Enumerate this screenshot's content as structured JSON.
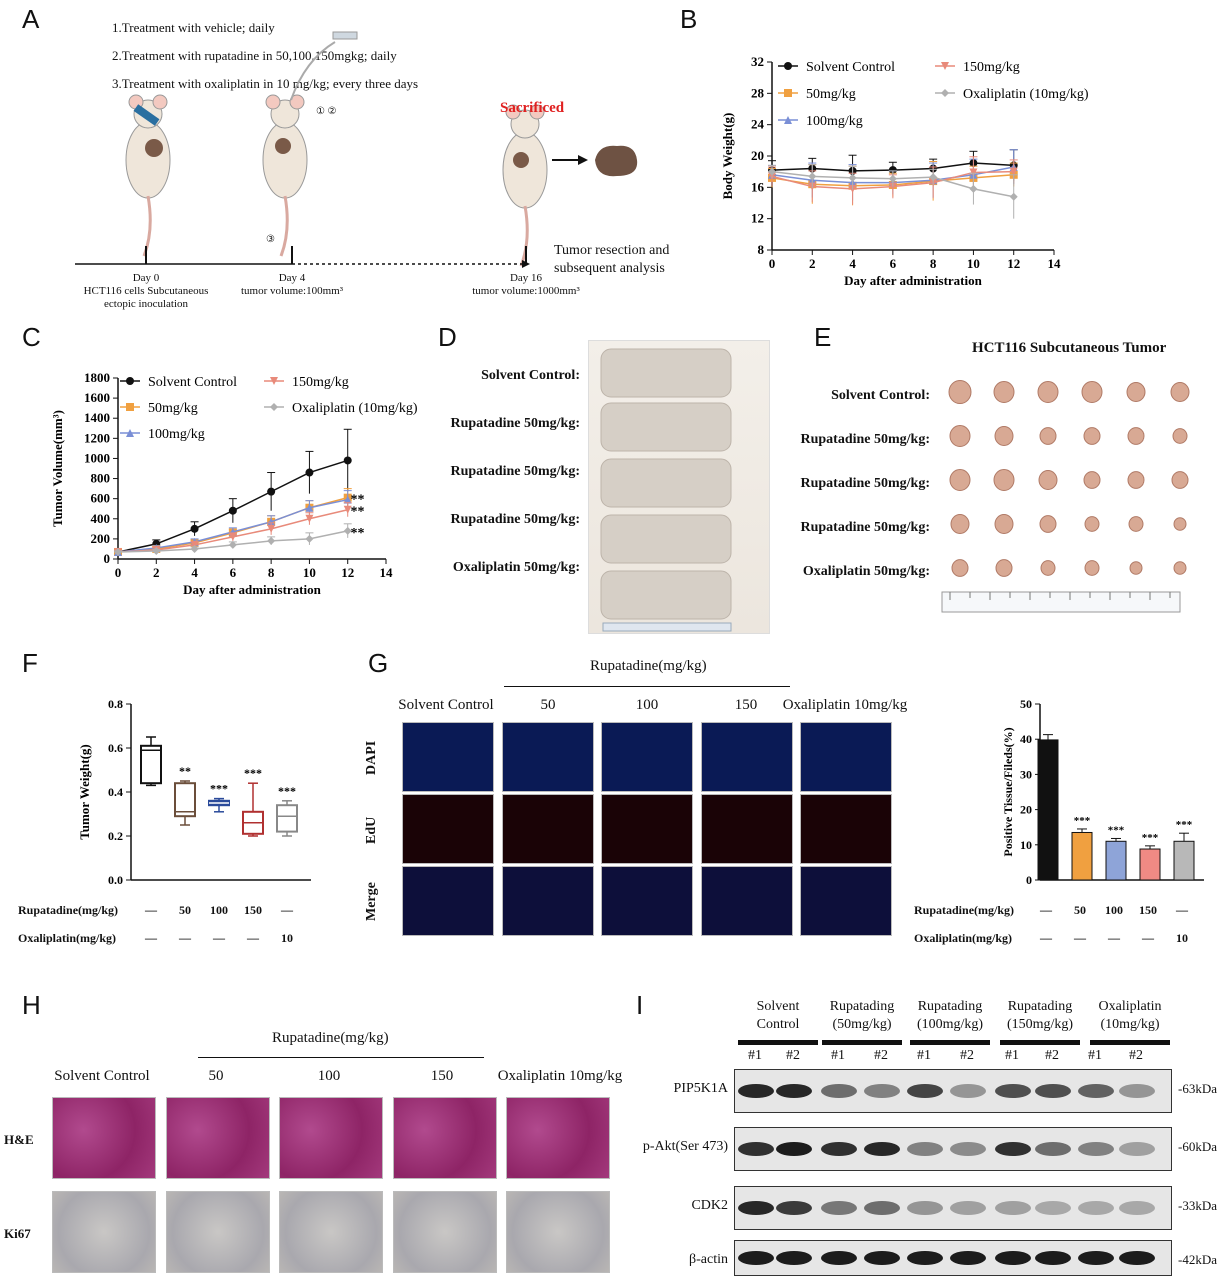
{
  "panels": {
    "A": {
      "label": "A",
      "steps": [
        "1.Treatment with vehicle; daily",
        "2.Treatment with rupatadine in 50,100,150mgkg; daily",
        "3.Treatment with oxaliplatin in 10 mg/kg; every three days"
      ],
      "sacrificed": "Sacrificed",
      "resection": [
        "Tumor resection and",
        "subsequent analysis"
      ],
      "timeline": [
        {
          "lines": [
            "Day 0",
            "HCT116 cells Subcutaneous",
            "ectopic inoculation"
          ]
        },
        {
          "lines": [
            "Day 4",
            "tumor volume:100mm³"
          ]
        },
        {
          "lines": [
            "Day 16",
            "tumor volume:1000mm³"
          ]
        }
      ],
      "markers": [
        "① ②",
        "③"
      ]
    },
    "B": {
      "label": "B"
    },
    "C": {
      "label": "C"
    },
    "D": {
      "label": "D",
      "rows": [
        "Solvent Control:",
        "Rupatadine 50mg/kg:",
        "Rupatadine 50mg/kg:",
        "Rupatadine 50mg/kg:",
        "Oxaliplatin 50mg/kg:"
      ]
    },
    "E": {
      "label": "E",
      "title": "HCT116 Subcutaneous Tumor",
      "rows": [
        "Solvent Control:",
        "Rupatadine 50mg/kg:",
        "Rupatadine 50mg/kg:",
        "Rupatadine 50mg/kg:",
        "Oxaliplatin 50mg/kg:"
      ]
    },
    "F": {
      "label": "F",
      "rupa_label": "Rupatadine(mg/kg)",
      "oxa_label": "Oxaliplatin(mg/kg)",
      "rupa": [
        "—",
        "50",
        "100",
        "150",
        "—"
      ],
      "oxa": [
        "—",
        "—",
        "—",
        "—",
        "10"
      ]
    },
    "G": {
      "label": "G",
      "group_title": "Rupatadine(mg/kg)",
      "cols": [
        "Solvent Control",
        "50",
        "100",
        "150",
        "Oxaliplatin 10mg/kg"
      ],
      "rows": [
        "DAPI",
        "EdU",
        "Merge"
      ],
      "rupa_label": "Rupatadine(mg/kg)",
      "oxa_label": "Oxaliplatin(mg/kg)",
      "rupa": [
        "—",
        "50",
        "100",
        "150",
        "—"
      ],
      "oxa": [
        "—",
        "—",
        "—",
        "—",
        "10"
      ]
    },
    "H": {
      "label": "H",
      "group_title": "Rupatadine(mg/kg)",
      "cols": [
        "Solvent Control",
        "50",
        "100",
        "150",
        "Oxaliplatin 10mg/kg"
      ],
      "rows": [
        "H&E",
        "Ki67"
      ]
    },
    "I": {
      "label": "I",
      "groups": [
        [
          "Solvent",
          "Control"
        ],
        [
          "Rupatading",
          "(50mg/kg)"
        ],
        [
          "Rupatading",
          "(100mg/kg)"
        ],
        [
          "Rupatading",
          "(150mg/kg)"
        ],
        [
          "Oxaliplatin",
          "(10mg/kg)"
        ]
      ],
      "lanes": [
        "#1",
        "#2",
        "#1",
        "#2",
        "#1",
        "#2",
        "#1",
        "#2",
        "#1",
        "#2"
      ],
      "blots": [
        {
          "name": "PIP5K1A",
          "size": "-63kDa",
          "intensity": [
            0.95,
            0.95,
            0.6,
            0.5,
            0.8,
            0.4,
            0.75,
            0.75,
            0.65,
            0.4
          ]
        },
        {
          "name": "p-Akt(Ser 473)",
          "size": "-60kDa",
          "intensity": [
            0.9,
            1.0,
            0.9,
            0.95,
            0.5,
            0.45,
            0.9,
            0.6,
            0.5,
            0.35
          ]
        },
        {
          "name": "CDK2",
          "size": "-33kDa",
          "intensity": [
            0.95,
            0.85,
            0.55,
            0.6,
            0.4,
            0.35,
            0.35,
            0.3,
            0.3,
            0.3
          ]
        },
        {
          "name": "β-actin",
          "size": "-42kDa",
          "intensity": [
            1,
            1,
            1,
            1,
            1,
            1,
            1,
            1,
            1,
            1
          ]
        }
      ]
    }
  },
  "chart_data": [
    {
      "id": "B",
      "type": "line",
      "xlabel": "Day after administration",
      "ylabel": "Body Weight(g)",
      "xlim": [
        0,
        14
      ],
      "ylim": [
        8,
        32
      ],
      "xticks": [
        0,
        2,
        4,
        6,
        8,
        10,
        12,
        14
      ],
      "yticks": [
        8,
        12,
        16,
        20,
        24,
        28,
        32
      ],
      "x": [
        0,
        2,
        4,
        6,
        8,
        10,
        12
      ],
      "series": [
        {
          "name": "Solvent Control",
          "color": "#111111",
          "marker": "circle",
          "values": [
            18.2,
            18.4,
            18.1,
            18.2,
            18.4,
            19.1,
            18.8
          ],
          "err": [
            1.2,
            1.3,
            2.0,
            1.0,
            1.2,
            1.5,
            2.0
          ]
        },
        {
          "name": "50mg/kg",
          "color": "#f0a040",
          "marker": "square",
          "values": [
            17.2,
            16.4,
            16.2,
            16.3,
            16.8,
            17.2,
            17.6
          ],
          "err": [
            1.2,
            2.5,
            2.5,
            1.5,
            2.5,
            1.5,
            1.5
          ]
        },
        {
          "name": "100mg/kg",
          "color": "#7a8fd6",
          "marker": "triangle-up",
          "values": [
            17.6,
            16.9,
            16.6,
            16.6,
            16.9,
            17.6,
            18.6
          ],
          "err": [
            1.2,
            2.2,
            2.3,
            1.5,
            2.2,
            2.0,
            2.2
          ]
        },
        {
          "name": "150mg/kg",
          "color": "#e88a7a",
          "marker": "triangle-down",
          "values": [
            17.4,
            16.1,
            15.8,
            16.1,
            16.6,
            17.9,
            18.0
          ],
          "err": [
            1.2,
            2.0,
            2.0,
            1.5,
            2.0,
            2.0,
            1.5
          ]
        },
        {
          "name": "Oxaliplatin (10mg/kg)",
          "color": "#b0b0b0",
          "marker": "diamond",
          "values": [
            18.0,
            17.4,
            17.2,
            17.1,
            17.3,
            15.8,
            14.8
          ],
          "err": [
            0.8,
            1.5,
            1.5,
            1.0,
            1.0,
            2.0,
            2.8
          ]
        }
      ]
    },
    {
      "id": "C",
      "type": "line",
      "xlabel": "Day after administration",
      "ylabel": "Tumor Volume(mm³)",
      "xlim": [
        0,
        14
      ],
      "ylim": [
        0,
        1800
      ],
      "xticks": [
        0,
        2,
        4,
        6,
        8,
        10,
        12,
        14
      ],
      "yticks": [
        0,
        200,
        400,
        600,
        800,
        1000,
        1200,
        1400,
        1600,
        1800
      ],
      "x": [
        0,
        2,
        4,
        6,
        8,
        10,
        12
      ],
      "series": [
        {
          "name": "Solvent Control",
          "color": "#111111",
          "marker": "circle",
          "values": [
            70,
            150,
            300,
            480,
            670,
            860,
            980
          ],
          "err": [
            20,
            40,
            70,
            120,
            190,
            210,
            310
          ]
        },
        {
          "name": "50mg/kg",
          "color": "#f0a040",
          "marker": "square",
          "values": [
            70,
            100,
            160,
            260,
            370,
            510,
            610
          ],
          "err": [
            15,
            20,
            30,
            40,
            60,
            70,
            90
          ]
        },
        {
          "name": "100mg/kg",
          "color": "#7a8fd6",
          "marker": "triangle-up",
          "values": [
            70,
            110,
            170,
            270,
            370,
            510,
            590
          ],
          "err": [
            15,
            20,
            30,
            40,
            60,
            70,
            90
          ]
        },
        {
          "name": "150mg/kg",
          "color": "#e88a7a",
          "marker": "triangle-down",
          "values": [
            70,
            90,
            140,
            220,
            300,
            400,
            490
          ],
          "err": [
            15,
            20,
            30,
            40,
            60,
            60,
            70
          ]
        },
        {
          "name": "Oxaliplatin (10mg/kg)",
          "color": "#b0b0b0",
          "marker": "diamond",
          "values": [
            70,
            80,
            100,
            140,
            180,
            200,
            280
          ],
          "err": [
            10,
            15,
            20,
            30,
            40,
            60,
            70
          ]
        }
      ],
      "annotations": [
        {
          "text": "**",
          "y": 610
        },
        {
          "text": "**",
          "y": 490
        },
        {
          "text": "**",
          "y": 280
        }
      ]
    },
    {
      "id": "F",
      "type": "box",
      "ylabel": "Tumor Weight(g)",
      "ylim": [
        0,
        0.8
      ],
      "yticks": [
        0.0,
        0.2,
        0.4,
        0.6,
        0.8
      ],
      "boxes": [
        {
          "color": "#111111",
          "min": 0.43,
          "q1": 0.44,
          "median": 0.59,
          "q3": 0.61,
          "max": 0.65,
          "sig": ""
        },
        {
          "color": "#6b4e3a",
          "min": 0.25,
          "q1": 0.29,
          "median": 0.31,
          "q3": 0.44,
          "max": 0.45,
          "sig": "**"
        },
        {
          "color": "#2a4a9a",
          "min": 0.31,
          "q1": 0.34,
          "median": 0.35,
          "q3": 0.36,
          "max": 0.37,
          "sig": "***"
        },
        {
          "color": "#b03030",
          "min": 0.2,
          "q1": 0.21,
          "median": 0.26,
          "q3": 0.31,
          "max": 0.44,
          "sig": "***"
        },
        {
          "color": "#888888",
          "min": 0.2,
          "q1": 0.22,
          "median": 0.29,
          "q3": 0.34,
          "max": 0.36,
          "sig": "***"
        }
      ]
    },
    {
      "id": "G-bar",
      "type": "bar",
      "ylabel": "Positive Tissue/Fileds(%)",
      "ylim": [
        0,
        50
      ],
      "yticks": [
        0,
        10,
        20,
        30,
        40,
        50
      ],
      "bars": [
        {
          "value": 39.8,
          "err": 1.5,
          "color": "#111111",
          "sig": ""
        },
        {
          "value": 13.5,
          "err": 1.0,
          "color": "#f0a040",
          "sig": "***"
        },
        {
          "value": 11.0,
          "err": 0.8,
          "color": "#8ea4d8",
          "sig": "***"
        },
        {
          "value": 8.8,
          "err": 0.9,
          "color": "#f08a84",
          "sig": "***"
        },
        {
          "value": 11.0,
          "err": 2.3,
          "color": "#b8b8b8",
          "sig": "***"
        }
      ]
    }
  ]
}
